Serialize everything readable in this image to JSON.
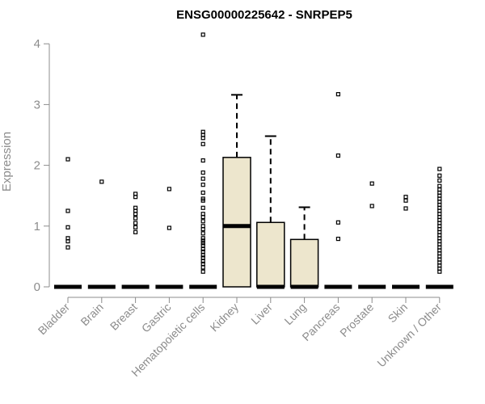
{
  "chart_data": {
    "type": "boxplot",
    "title": "ENSG00000225642 - SNRPEP5",
    "ylabel": "Expression",
    "xlabel": "",
    "ylim": [
      0,
      4.2
    ],
    "yticks": [
      0,
      1,
      2,
      3,
      4
    ],
    "grid": false,
    "colors": {
      "box_fill": "#ede6cd",
      "stroke": "#000000",
      "axis": "#8c8c8c"
    },
    "categories": [
      "Bladder",
      "Brain",
      "Breast",
      "Gastric",
      "Hematopoietic cells",
      "Kidney",
      "Liver",
      "Lung",
      "Pancreas",
      "Prostate",
      "Skin",
      "Unknown / Other"
    ],
    "boxes": [
      {
        "category": "Bladder",
        "q1": 0,
        "median": 0,
        "q3": 0,
        "whisker_low": 0,
        "whisker_high": 0,
        "outliers": [
          2.1,
          1.25,
          0.98,
          0.8,
          0.75,
          0.65
        ]
      },
      {
        "category": "Brain",
        "q1": 0,
        "median": 0,
        "q3": 0,
        "whisker_low": 0,
        "whisker_high": 0,
        "outliers": [
          1.73
        ]
      },
      {
        "category": "Breast",
        "q1": 0,
        "median": 0,
        "q3": 0,
        "whisker_low": 0,
        "whisker_high": 0,
        "outliers": [
          1.53,
          1.48,
          1.3,
          1.25,
          1.2,
          1.13,
          1.05,
          0.98,
          0.9
        ]
      },
      {
        "category": "Gastric",
        "q1": 0,
        "median": 0,
        "q3": 0,
        "whisker_low": 0,
        "whisker_high": 0,
        "outliers": [
          1.61,
          0.97
        ]
      },
      {
        "category": "Hematopoietic cells",
        "q1": 0,
        "median": 0,
        "q3": 0,
        "whisker_low": 0,
        "whisker_high": 0,
        "outliers": [
          4.15,
          2.55,
          2.5,
          2.45,
          2.35,
          2.08,
          1.88,
          1.78,
          1.68,
          1.55,
          1.45,
          1.42,
          1.3,
          1.2,
          1.15,
          1.08,
          1.0,
          0.95,
          0.88,
          0.8,
          0.76,
          0.72,
          0.68,
          0.62,
          0.58,
          0.52,
          0.48,
          0.42,
          0.38,
          0.32,
          0.25
        ]
      },
      {
        "category": "Kidney",
        "q1": 0,
        "median": 1.0,
        "q3": 2.13,
        "whisker_low": 0,
        "whisker_high": 3.16,
        "outliers": []
      },
      {
        "category": "Liver",
        "q1": 0,
        "median": 0,
        "q3": 1.06,
        "whisker_low": 0,
        "whisker_high": 2.48,
        "outliers": []
      },
      {
        "category": "Lung",
        "q1": 0,
        "median": 0,
        "q3": 0.78,
        "whisker_low": 0,
        "whisker_high": 1.31,
        "outliers": []
      },
      {
        "category": "Pancreas",
        "q1": 0,
        "median": 0,
        "q3": 0,
        "whisker_low": 0,
        "whisker_high": 0,
        "outliers": [
          3.17,
          2.16,
          1.06,
          0.79
        ]
      },
      {
        "category": "Prostate",
        "q1": 0,
        "median": 0,
        "q3": 0,
        "whisker_low": 0,
        "whisker_high": 0,
        "outliers": [
          1.7,
          1.33
        ]
      },
      {
        "category": "Skin",
        "q1": 0,
        "median": 0,
        "q3": 0,
        "whisker_low": 0,
        "whisker_high": 0,
        "outliers": [
          1.48,
          1.42,
          1.29
        ]
      },
      {
        "category": "Unknown / Other",
        "q1": 0,
        "median": 0,
        "q3": 0,
        "whisker_low": 0,
        "whisker_high": 0,
        "outliers": [
          1.94,
          1.83,
          1.75,
          1.66,
          1.6,
          1.55,
          1.5,
          1.45,
          1.4,
          1.35,
          1.3,
          1.25,
          1.2,
          1.15,
          1.1,
          1.05,
          1.0,
          0.95,
          0.9,
          0.85,
          0.8,
          0.75,
          0.7,
          0.65,
          0.6,
          0.55,
          0.5,
          0.45,
          0.4,
          0.35,
          0.3,
          0.25
        ]
      }
    ]
  }
}
